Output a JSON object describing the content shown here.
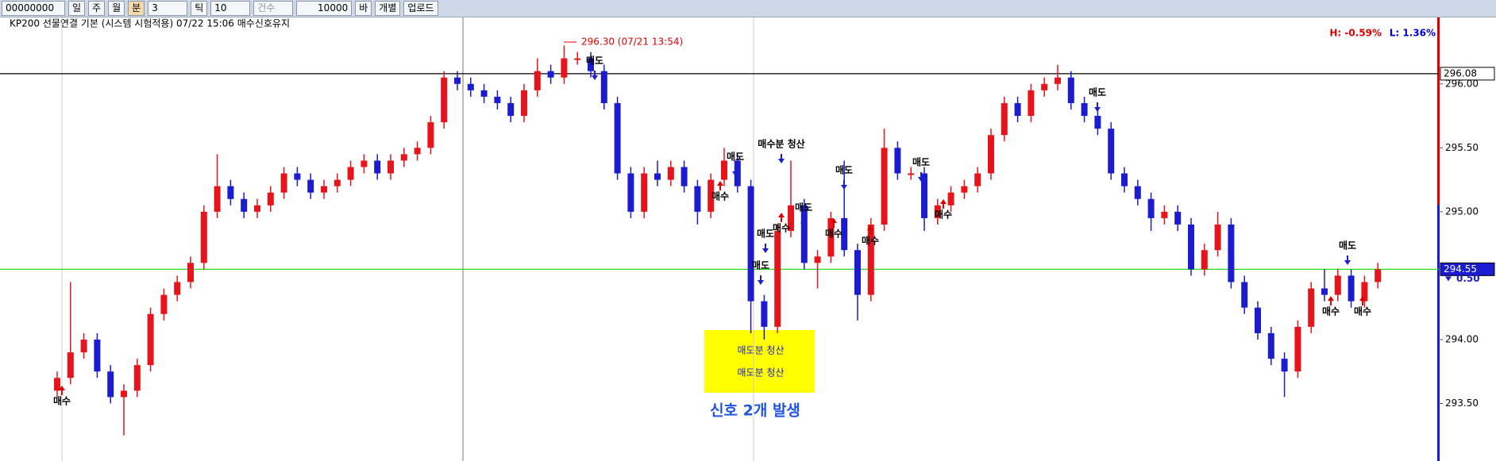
{
  "toolbar": {
    "code": "00000000",
    "buttons": [
      "일",
      "주",
      "월",
      "분"
    ],
    "period": "3",
    "tick_label": "틱",
    "tick": "10",
    "count": "건수",
    "bars": "10000",
    "bars_unit": "바",
    "individual": "개별",
    "upload": "업로드"
  },
  "chart_data": {
    "type": "candlestick",
    "title": "KP200 선물연결  기본 (시스템 시험적용) 07/22 15:06 매수신호유지",
    "series": [
      {
        "up_color": "#e8141b",
        "down_color": "#1b1bd0",
        "open": [
          293.6,
          293.7,
          293.9,
          294.0,
          293.75,
          293.55,
          293.6,
          293.8,
          294.2,
          294.35,
          294.45,
          294.6,
          295.0,
          295.2,
          295.1,
          295.0,
          295.05,
          295.15,
          295.3,
          295.25,
          295.15,
          295.2,
          295.25,
          295.35,
          295.4,
          295.3,
          295.4,
          295.45,
          295.5,
          295.7,
          296.05,
          296.0,
          295.95,
          295.9,
          295.85,
          295.75,
          295.95,
          296.1,
          296.05,
          296.2,
          296.2,
          296.1,
          295.85,
          295.3,
          295.0,
          295.3,
          295.25,
          295.35,
          295.2,
          295.0,
          295.25,
          295.4,
          295.2,
          294.3,
          294.1,
          294.85,
          295.05,
          294.6,
          294.65,
          294.95,
          294.7,
          294.35,
          294.9,
          295.5,
          295.3,
          295.3,
          294.95,
          295.05,
          295.15,
          295.2,
          295.3,
          295.6,
          295.85,
          295.75,
          295.95,
          296.0,
          296.05,
          295.85,
          295.75,
          295.65,
          295.3,
          295.2,
          295.1,
          294.95,
          295.0,
          294.9,
          294.55,
          294.7,
          294.9,
          294.45,
          294.25,
          294.05,
          293.85,
          293.75,
          294.1,
          294.4,
          294.35,
          294.5,
          294.3,
          294.45
        ],
        "high": [
          293.75,
          294.45,
          294.05,
          294.05,
          293.8,
          293.65,
          293.85,
          294.25,
          294.4,
          294.5,
          294.65,
          295.05,
          295.45,
          295.25,
          295.15,
          295.1,
          295.2,
          295.35,
          295.35,
          295.3,
          295.25,
          295.3,
          295.4,
          295.45,
          295.45,
          295.45,
          295.5,
          295.55,
          295.75,
          296.1,
          296.1,
          296.05,
          296.0,
          295.95,
          295.9,
          296.0,
          296.2,
          296.15,
          296.3,
          296.25,
          296.25,
          296.15,
          295.9,
          295.35,
          295.35,
          295.4,
          295.4,
          295.4,
          295.25,
          295.3,
          295.5,
          295.45,
          295.25,
          294.35,
          294.9,
          295.4,
          295.1,
          294.7,
          295.0,
          295.4,
          294.75,
          294.95,
          295.65,
          295.55,
          295.35,
          295.35,
          295.1,
          295.2,
          295.25,
          295.35,
          295.65,
          295.9,
          295.9,
          296.0,
          296.05,
          296.15,
          296.1,
          295.9,
          295.8,
          295.7,
          295.35,
          295.25,
          295.15,
          295.05,
          295.05,
          294.95,
          294.75,
          295.0,
          294.95,
          294.5,
          294.3,
          294.1,
          293.9,
          294.15,
          294.45,
          294.55,
          294.55,
          294.55,
          294.5,
          294.6
        ],
        "low": [
          293.55,
          293.65,
          293.85,
          293.7,
          293.5,
          293.25,
          293.55,
          293.75,
          294.15,
          294.3,
          294.4,
          294.55,
          294.95,
          295.05,
          294.95,
          294.95,
          295.0,
          295.1,
          295.2,
          295.1,
          295.1,
          295.15,
          295.2,
          295.3,
          295.25,
          295.25,
          295.35,
          295.4,
          295.45,
          295.65,
          295.95,
          295.9,
          295.85,
          295.8,
          295.7,
          295.7,
          295.9,
          296.0,
          296.0,
          296.15,
          296.05,
          295.8,
          295.25,
          294.95,
          294.95,
          295.2,
          295.2,
          295.15,
          294.9,
          294.95,
          295.2,
          295.15,
          294.05,
          294.0,
          294.05,
          294.8,
          294.55,
          294.4,
          294.6,
          294.65,
          294.15,
          294.3,
          294.85,
          295.25,
          295.25,
          294.85,
          294.9,
          295.0,
          295.1,
          295.15,
          295.25,
          295.55,
          295.7,
          295.7,
          295.9,
          295.95,
          295.8,
          295.7,
          295.6,
          295.25,
          295.15,
          295.05,
          294.85,
          294.9,
          294.85,
          294.5,
          294.5,
          294.65,
          294.4,
          294.2,
          294.0,
          293.8,
          293.55,
          293.7,
          294.05,
          294.3,
          294.3,
          294.25,
          294.25,
          294.4
        ],
        "close": [
          293.7,
          293.9,
          294.0,
          293.75,
          293.55,
          293.6,
          293.8,
          294.2,
          294.35,
          294.45,
          294.6,
          295.0,
          295.2,
          295.1,
          295.0,
          295.05,
          295.15,
          295.3,
          295.25,
          295.15,
          295.2,
          295.25,
          295.35,
          295.4,
          295.3,
          295.4,
          295.45,
          295.5,
          295.7,
          296.05,
          296.0,
          295.95,
          295.9,
          295.85,
          295.75,
          295.95,
          296.1,
          296.05,
          296.2,
          296.2,
          296.1,
          295.85,
          295.3,
          295.0,
          295.3,
          295.25,
          295.35,
          295.2,
          295.0,
          295.25,
          295.4,
          295.2,
          294.3,
          294.1,
          294.85,
          295.05,
          294.6,
          294.65,
          294.95,
          294.7,
          294.35,
          294.9,
          295.5,
          295.3,
          295.3,
          294.95,
          295.05,
          295.15,
          295.2,
          295.3,
          295.6,
          295.85,
          295.75,
          295.95,
          296.0,
          296.05,
          295.85,
          295.75,
          295.65,
          295.3,
          295.2,
          295.1,
          294.95,
          295.0,
          294.9,
          294.55,
          294.7,
          294.9,
          294.45,
          294.25,
          294.05,
          293.85,
          293.75,
          294.1,
          294.4,
          294.35,
          294.5,
          294.3,
          294.45,
          294.55
        ]
      }
    ],
    "ylim": [
      293.05,
      296.52
    ],
    "yticks": [
      {
        "value": 293.5,
        "label": "293.50"
      },
      {
        "value": 294,
        "label": "294.00"
      },
      {
        "value": 295,
        "label": "295.00"
      },
      {
        "value": 295.5,
        "label": "295.50"
      },
      {
        "value": 296,
        "label": "296.00"
      }
    ],
    "hlines": [
      {
        "value": 296.08,
        "label": "296.08",
        "color": "#000000"
      },
      {
        "value": 294.55,
        "label": "294.55",
        "color": "#22dd22"
      }
    ],
    "change_label": "0.50",
    "high_low": [
      "H: -0.59%",
      "L: 1.36%"
    ],
    "high_note": "296.30 (07/21 13:54)",
    "signals": [
      "매수",
      "매도",
      "매도",
      "매수",
      "매수분 청산",
      "매도",
      "매수",
      "매도",
      "매도",
      "매수",
      "매도",
      "매수",
      "매도",
      "매수",
      "매도",
      "매도",
      "매수",
      "매수"
    ],
    "box_texts": [
      "매도분 청산",
      "매도분 청산"
    ],
    "note": "신호 2개 발생"
  }
}
